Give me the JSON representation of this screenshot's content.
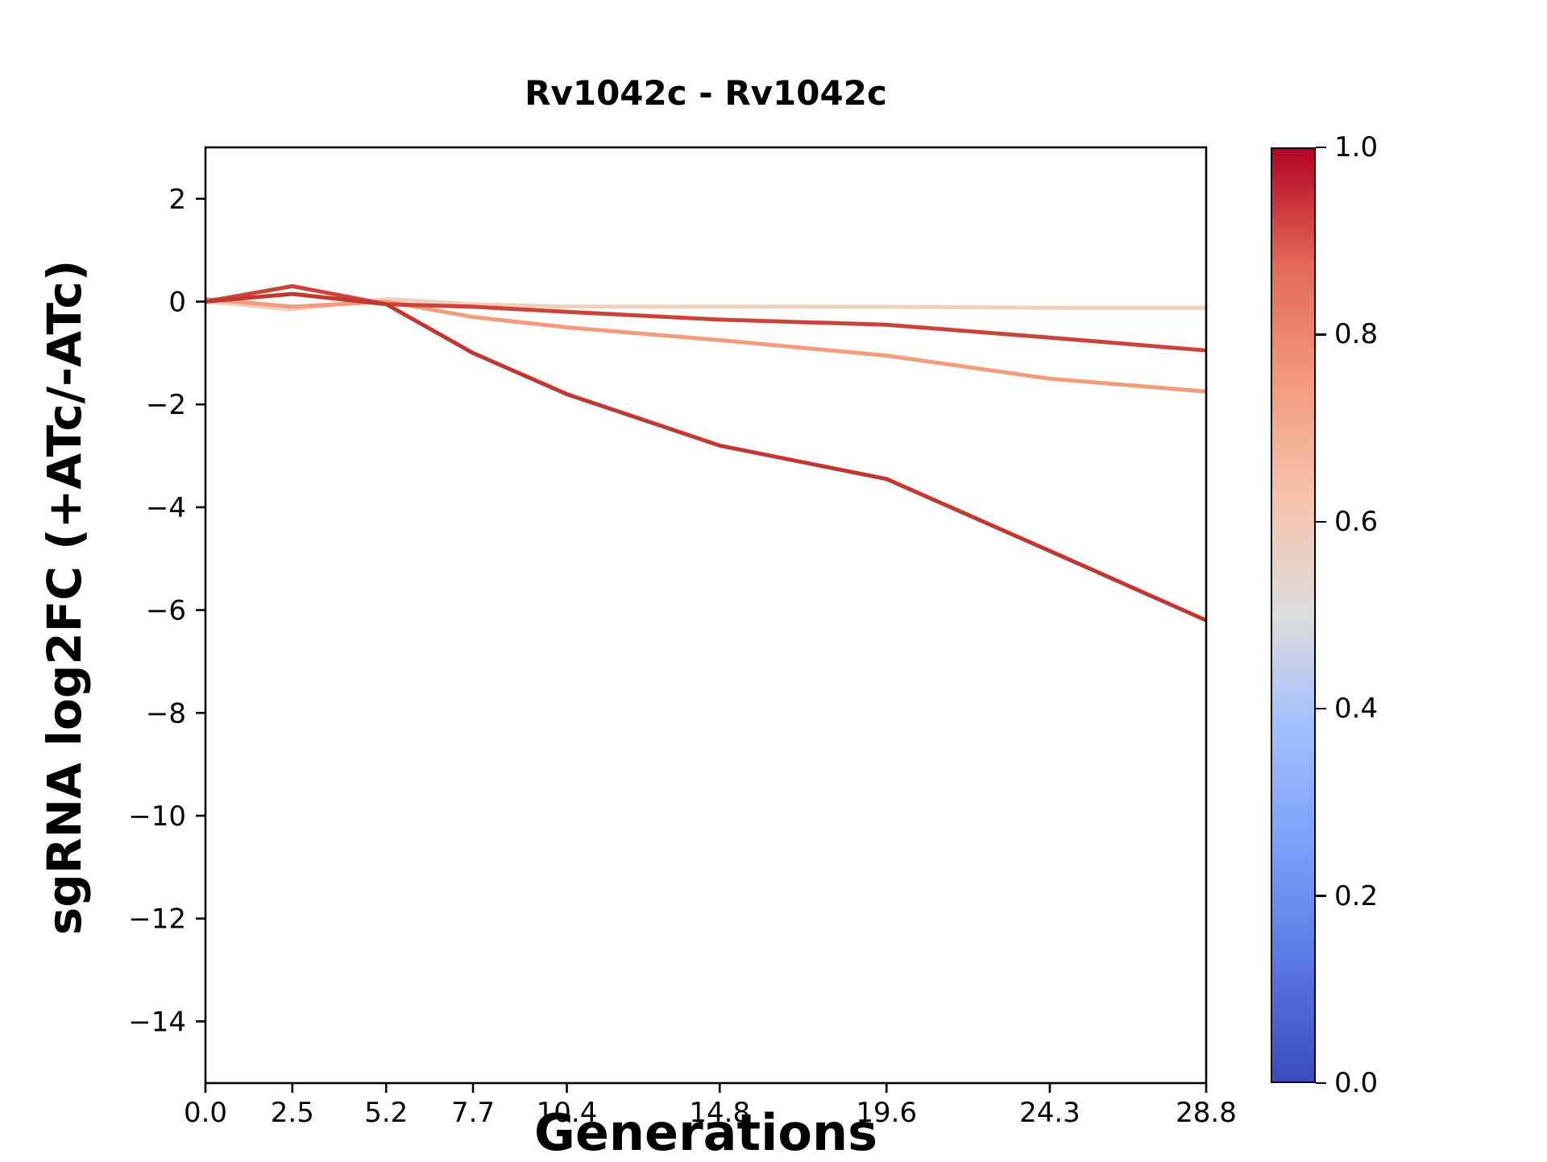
{
  "chart_data": {
    "type": "line",
    "title": "Rv1042c - Rv1042c",
    "xlabel": "Generations",
    "ylabel": "sgRNA log2FC (+ATc/-ATc)",
    "x": [
      0.0,
      2.5,
      5.2,
      7.7,
      10.4,
      14.8,
      19.6,
      24.3,
      28.8
    ],
    "xtick_labels": [
      "0.0",
      "2.5",
      "5.2",
      "7.7",
      "10.4",
      "14.8",
      "19.6",
      "24.3",
      "28.8"
    ],
    "ytick_values": [
      2,
      0,
      -2,
      -4,
      -6,
      -8,
      -10,
      -12,
      -14
    ],
    "ytick_labels": [
      "2",
      "0",
      "−2",
      "−4",
      "−6",
      "−8",
      "−10",
      "−12",
      "−14"
    ],
    "xlim": [
      0.0,
      28.8
    ],
    "ylim": [
      -15.2,
      3.0
    ],
    "grid": false,
    "legend_position": "colorbar-right",
    "series": [
      {
        "name": "line-lightest",
        "colorbar_value": 0.56,
        "color": "#f0cfbd",
        "values": [
          0.0,
          -0.15,
          0.05,
          -0.05,
          -0.1,
          -0.1,
          -0.1,
          -0.12,
          -0.12
        ]
      },
      {
        "name": "line-salmon",
        "colorbar_value": 0.7,
        "color": "#f19c7c",
        "values": [
          0.05,
          -0.1,
          0.0,
          -0.3,
          -0.5,
          -0.75,
          -1.05,
          -1.5,
          -1.75
        ]
      },
      {
        "name": "line-red",
        "colorbar_value": 0.88,
        "color": "#c9443a",
        "values": [
          0.0,
          0.3,
          -0.05,
          -0.1,
          -0.2,
          -0.35,
          -0.45,
          -0.7,
          -0.95
        ]
      },
      {
        "name": "line-darkred",
        "colorbar_value": 0.93,
        "color": "#c0382f",
        "values": [
          0.0,
          0.15,
          -0.05,
          -1.0,
          -1.8,
          -2.8,
          -3.45,
          -4.85,
          -6.2
        ]
      }
    ],
    "colorbar": {
      "cmap": "coolwarm",
      "tick_labels": [
        "0.0",
        "0.2",
        "0.4",
        "0.6",
        "0.8",
        "1.0"
      ],
      "tick_values": [
        0.0,
        0.2,
        0.4,
        0.6,
        0.8,
        1.0
      ],
      "range": [
        0.0,
        1.0
      ],
      "gradient_stops": [
        {
          "pos": 0.0,
          "color": "#3b4cc0"
        },
        {
          "pos": 0.125,
          "color": "#5977e3"
        },
        {
          "pos": 0.25,
          "color": "#7b9ff9"
        },
        {
          "pos": 0.375,
          "color": "#9ebeff"
        },
        {
          "pos": 0.5,
          "color": "#dddcdc"
        },
        {
          "pos": 0.625,
          "color": "#f5c4ac"
        },
        {
          "pos": 0.75,
          "color": "#f49a7b"
        },
        {
          "pos": 0.875,
          "color": "#e36a55"
        },
        {
          "pos": 1.0,
          "color": "#b40426"
        }
      ]
    }
  }
}
